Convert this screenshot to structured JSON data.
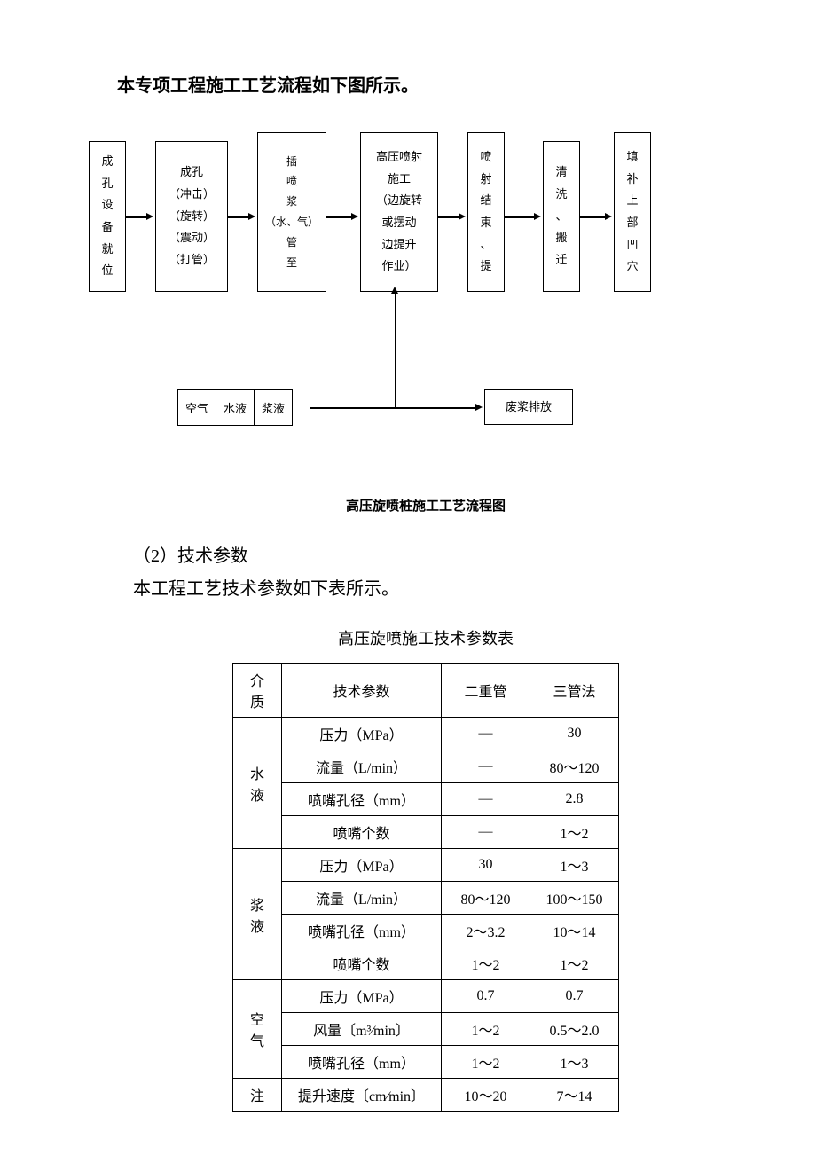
{
  "intro": "本专项工程施工工艺流程如下图所示。",
  "flowchart": {
    "boxes": [
      {
        "id": "box1",
        "text": "成孔设备就位",
        "lines": [
          "成",
          "孔",
          "设",
          "备",
          "就",
          "位"
        ]
      },
      {
        "id": "box2",
        "lines": [
          "成孔",
          "（冲击）",
          "（旋转）",
          "（震动）",
          "（打管）"
        ]
      },
      {
        "id": "box3",
        "lines": [
          "插",
          "喷",
          "浆",
          "（水、气）",
          "管",
          "至"
        ]
      },
      {
        "id": "box4",
        "lines": [
          "高压喷射",
          "施工",
          "（边旋转",
          "或摆动",
          "边提升",
          "作业）"
        ]
      },
      {
        "id": "box5",
        "lines": [
          "喷",
          "射",
          "结",
          "束",
          "、",
          "提"
        ]
      },
      {
        "id": "box6",
        "lines": [
          "清",
          "洗",
          "、",
          "搬",
          "迁"
        ]
      },
      {
        "id": "box7",
        "lines": [
          "填",
          "补",
          "上",
          "部",
          "凹",
          "穴"
        ]
      }
    ],
    "inputs": [
      "空气",
      "水液",
      "浆液"
    ],
    "waste": "废浆排放",
    "caption": "高压旋喷桩施工工艺流程图"
  },
  "section2": {
    "num": "（2）技术参数",
    "desc": "本工程工艺技术参数如下表所示。"
  },
  "table": {
    "title": "高压旋喷施工技术参数表",
    "headers": [
      "介质",
      "技术参数",
      "二重管",
      "三管法"
    ],
    "rows": [
      {
        "medium": "水液",
        "rowspan": 4,
        "param": "压力（MPa）",
        "v1": "—",
        "v2": "30"
      },
      {
        "param": "流量（L/min）",
        "v1": "—",
        "v2": "80～120"
      },
      {
        "param": "喷嘴孔径（mm）",
        "v1": "—",
        "v2": "2.8"
      },
      {
        "param": "喷嘴个数",
        "v1": "—",
        "v2": "1～2"
      },
      {
        "medium": "浆液",
        "rowspan": 4,
        "param": "压力（MPa）",
        "v1": "30",
        "v2": "1～3"
      },
      {
        "param": "流量（L/min）",
        "v1": "80～120",
        "v2": "100～150"
      },
      {
        "param": "喷嘴孔径（mm）",
        "v1": "2～3.2",
        "v2": "10～14"
      },
      {
        "param": "喷嘴个数",
        "v1": "1～2",
        "v2": "1～2"
      },
      {
        "medium": "空气",
        "rowspan": 3,
        "param": "压力（MPa）",
        "v1": "0.7",
        "v2": "0.7"
      },
      {
        "param": "风量〔m³⁄min〕",
        "v1": "1～2",
        "v2": "0.5～2.0"
      },
      {
        "param": "喷嘴孔径（mm）",
        "v1": "1～2",
        "v2": "1～3"
      },
      {
        "medium": "注",
        "rowspan": 1,
        "param": "提升速度〔cm⁄min〕",
        "v1": "10～20",
        "v2": "7～14"
      }
    ]
  }
}
